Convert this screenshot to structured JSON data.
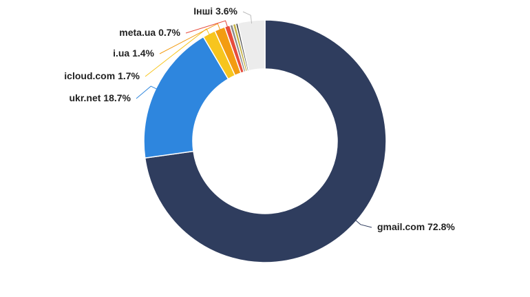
{
  "chart_data": {
    "type": "donut",
    "categories": [
      "gmail.com",
      "ukr.net",
      "icloud.com",
      "i.ua",
      "meta.ua",
      null,
      null,
      null,
      "Інші"
    ],
    "values": [
      72.8,
      18.7,
      1.7,
      1.4,
      0.7,
      0.4,
      0.4,
      0.3,
      3.6
    ],
    "value_labels": [
      "72.8%",
      "18.7%",
      "1.7%",
      "1.4%",
      "0.7%",
      null,
      null,
      null,
      "3.6%"
    ],
    "colors": [
      "#2f3d5e",
      "#2e86de",
      "#f7c51e",
      "#f39c12",
      "#e74c3c",
      "#8c8c8c",
      "#c7b448",
      "#4d4d4d",
      "#ececec"
    ]
  }
}
